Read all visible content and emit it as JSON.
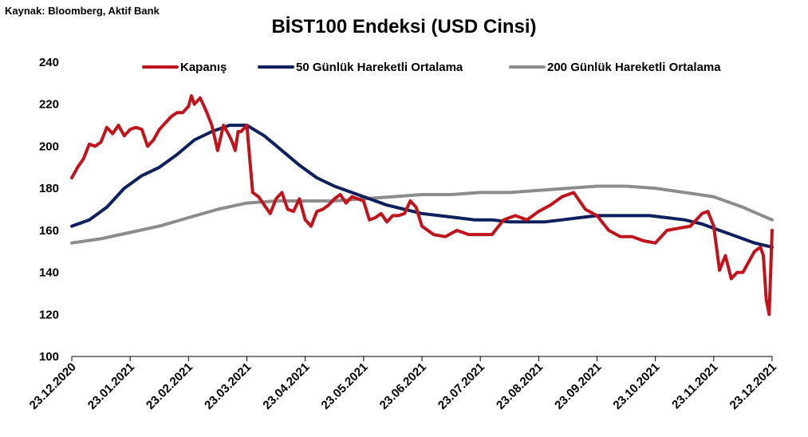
{
  "source": "Kaynak: Bloomberg, Aktif Bank",
  "chart_data": {
    "type": "line",
    "title": "BİST100 Endeksi (USD Cinsi)",
    "xlabel": "",
    "ylabel": "",
    "ylim": [
      100,
      240
    ],
    "yticks": [
      100,
      120,
      140,
      160,
      180,
      200,
      220,
      240
    ],
    "xtick_labels": [
      "23.12.2020",
      "23.01.2021",
      "23.02.2021",
      "23.03.2021",
      "23.04.2021",
      "23.05.2021",
      "23.06.2021",
      "23.07.2021",
      "23.08.2021",
      "23.09.2021",
      "23.10.2021",
      "23.11.2021",
      "23.12.2021"
    ],
    "x_unit": "months since 23.12.2020",
    "legend_position": "top",
    "series": [
      {
        "name": "Kapanış",
        "color": "#c0141c",
        "x": [
          0,
          0.1,
          0.2,
          0.3,
          0.4,
          0.5,
          0.6,
          0.7,
          0.8,
          0.9,
          1.0,
          1.1,
          1.2,
          1.3,
          1.4,
          1.5,
          1.6,
          1.7,
          1.8,
          1.9,
          2.0,
          2.05,
          2.1,
          2.2,
          2.3,
          2.4,
          2.5,
          2.6,
          2.7,
          2.75,
          2.8,
          2.85,
          2.9,
          3.0,
          3.1,
          3.2,
          3.3,
          3.4,
          3.5,
          3.6,
          3.7,
          3.8,
          3.9,
          4.0,
          4.1,
          4.2,
          4.3,
          4.4,
          4.5,
          4.6,
          4.7,
          4.8,
          4.9,
          5.0,
          5.1,
          5.2,
          5.3,
          5.4,
          5.5,
          5.6,
          5.7,
          5.8,
          5.9,
          6.0,
          6.2,
          6.4,
          6.6,
          6.8,
          7.0,
          7.2,
          7.4,
          7.6,
          7.8,
          8.0,
          8.2,
          8.4,
          8.6,
          8.8,
          9.0,
          9.2,
          9.4,
          9.6,
          9.8,
          10.0,
          10.2,
          10.4,
          10.6,
          10.8,
          10.9,
          11.0,
          11.1,
          11.2,
          11.3,
          11.4,
          11.5,
          11.6,
          11.7,
          11.8,
          11.85,
          11.9,
          11.95,
          12.0
        ],
        "values": [
          185,
          190,
          194,
          201,
          200,
          202,
          209,
          206,
          210,
          205,
          208,
          209,
          208,
          200,
          203,
          208,
          211,
          214,
          216,
          216,
          219,
          224,
          220,
          223,
          217,
          210,
          198,
          210,
          205,
          202,
          198,
          207,
          207,
          210,
          178,
          176,
          172,
          168,
          175,
          178,
          170,
          169,
          175,
          165,
          162,
          169,
          170,
          172,
          175,
          177,
          173,
          176,
          175,
          174,
          165,
          166,
          168,
          164,
          167,
          167,
          168,
          174,
          171,
          162,
          158,
          157,
          160,
          158,
          158,
          158,
          165,
          167,
          165,
          169,
          172,
          176,
          178,
          170,
          167,
          160,
          157,
          157,
          155,
          154,
          160,
          161,
          162,
          168,
          169,
          162,
          141,
          148,
          137,
          140,
          140,
          145,
          150,
          152,
          148,
          127,
          120,
          160
        ]
      },
      {
        "name": "50 Günlük Hareketli Ortalama",
        "color": "#0d1f5c",
        "x": [
          0,
          0.3,
          0.6,
          0.9,
          1.2,
          1.5,
          1.8,
          2.1,
          2.4,
          2.7,
          3.0,
          3.3,
          3.6,
          3.9,
          4.2,
          4.5,
          4.8,
          5.1,
          5.4,
          5.7,
          6.0,
          6.3,
          6.6,
          6.9,
          7.2,
          7.5,
          7.8,
          8.1,
          8.4,
          8.7,
          9.0,
          9.3,
          9.6,
          9.9,
          10.2,
          10.5,
          10.8,
          11.1,
          11.4,
          11.7,
          12.0
        ],
        "values": [
          162,
          165,
          171,
          180,
          186,
          190,
          196,
          203,
          207,
          210,
          210,
          205,
          198,
          191,
          185,
          181,
          178,
          175,
          172,
          170,
          168,
          167,
          166,
          165,
          165,
          164,
          164,
          164,
          165,
          166,
          167,
          167,
          167,
          167,
          166,
          165,
          163,
          160,
          157,
          154,
          152
        ]
      },
      {
        "name": "200 Günlük Hareketli Ortalama",
        "color": "#8c8c8c",
        "x": [
          0,
          0.5,
          1.0,
          1.5,
          2.0,
          2.5,
          3.0,
          3.5,
          4.0,
          4.5,
          5.0,
          5.5,
          6.0,
          6.5,
          7.0,
          7.5,
          8.0,
          8.5,
          9.0,
          9.5,
          10.0,
          10.5,
          11.0,
          11.5,
          12.0
        ],
        "values": [
          154,
          156,
          159,
          162,
          166,
          170,
          173,
          174,
          174,
          174,
          175,
          176,
          177,
          177,
          178,
          178,
          179,
          180,
          181,
          181,
          180,
          178,
          176,
          171,
          165
        ]
      }
    ]
  }
}
